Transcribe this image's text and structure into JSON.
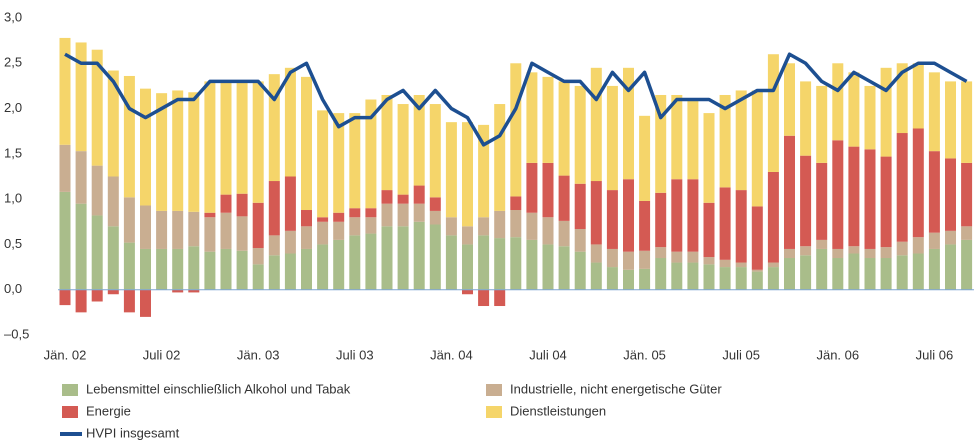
{
  "chart_data": {
    "type": "bar",
    "categories": [
      "Jän. 02",
      null,
      null,
      null,
      null,
      null,
      "Juli 02",
      null,
      null,
      null,
      null,
      null,
      "Jän. 03",
      null,
      null,
      null,
      null,
      null,
      "Juli 03",
      null,
      null,
      null,
      null,
      null,
      "Jän. 04",
      null,
      null,
      null,
      null,
      null,
      "Juli 04",
      null,
      null,
      null,
      null,
      null,
      "Jän. 05",
      null,
      null,
      null,
      null,
      null,
      "Juli 05",
      null,
      null,
      null,
      null,
      null,
      "Jän. 06",
      null,
      null,
      null,
      null,
      null,
      "Juli 06",
      null,
      null
    ],
    "series": [
      {
        "name": "Lebensmittel einschließlich Alkohol und Tabak",
        "color": "#a9bd8a",
        "values": [
          1.08,
          0.95,
          0.82,
          0.7,
          0.52,
          0.45,
          0.45,
          0.45,
          0.48,
          0.42,
          0.45,
          0.43,
          0.28,
          0.38,
          0.4,
          0.45,
          0.5,
          0.55,
          0.6,
          0.62,
          0.7,
          0.7,
          0.75,
          0.72,
          0.6,
          0.5,
          0.6,
          0.57,
          0.58,
          0.55,
          0.5,
          0.48,
          0.42,
          0.3,
          0.25,
          0.22,
          0.23,
          0.35,
          0.3,
          0.3,
          0.28,
          0.25,
          0.25,
          0.2,
          0.25,
          0.35,
          0.38,
          0.45,
          0.35,
          0.4,
          0.35,
          0.35,
          0.38,
          0.4,
          0.45,
          0.5,
          0.55
        ]
      },
      {
        "name": "Industrielle, nicht energetische Güter",
        "color": "#c9ae91",
        "values": [
          0.52,
          0.58,
          0.55,
          0.55,
          0.5,
          0.48,
          0.42,
          0.42,
          0.38,
          0.38,
          0.4,
          0.38,
          0.18,
          0.22,
          0.25,
          0.25,
          0.25,
          0.2,
          0.2,
          0.18,
          0.25,
          0.25,
          0.2,
          0.15,
          0.2,
          0.2,
          0.2,
          0.3,
          0.3,
          0.3,
          0.3,
          0.28,
          0.25,
          0.2,
          0.2,
          0.2,
          0.2,
          0.12,
          0.12,
          0.12,
          0.08,
          0.08,
          0.05,
          0.02,
          0.05,
          0.1,
          0.1,
          0.1,
          0.1,
          0.08,
          0.1,
          0.12,
          0.15,
          0.18,
          0.18,
          0.15,
          0.15
        ]
      },
      {
        "name": "Energie",
        "color": "#d45a53",
        "values": [
          -0.17,
          -0.25,
          -0.13,
          -0.05,
          -0.25,
          -0.3,
          0,
          -0.03,
          -0.03,
          0.05,
          0.2,
          0.25,
          0.5,
          0.6,
          0.6,
          0.18,
          0.05,
          0.1,
          0.1,
          0.1,
          0.15,
          0.1,
          0.2,
          0.15,
          0,
          -0.05,
          -0.18,
          -0.18,
          0.15,
          0.55,
          0.6,
          0.5,
          0.5,
          0.7,
          0.65,
          0.8,
          0.55,
          0.6,
          0.8,
          0.8,
          0.6,
          0.8,
          0.8,
          0.7,
          1.0,
          1.25,
          1.0,
          0.85,
          1.2,
          1.1,
          1.1,
          1.0,
          1.2,
          1.2,
          0.9,
          0.8,
          0.7
        ]
      },
      {
        "name": "Dienstleistungen",
        "color": "#f5d56a",
        "values": [
          1.18,
          1.2,
          1.28,
          1.17,
          1.34,
          1.29,
          1.3,
          1.33,
          1.32,
          1.45,
          1.25,
          1.24,
          1.34,
          1.18,
          1.2,
          1.47,
          1.18,
          1.1,
          1.05,
          1.2,
          1.05,
          1.0,
          1.0,
          1.03,
          1.05,
          1.15,
          1.02,
          1.18,
          1.47,
          1.0,
          0.95,
          1.04,
          1.08,
          1.25,
          1.15,
          1.23,
          0.94,
          1.08,
          0.93,
          0.88,
          0.99,
          1.02,
          1.1,
          1.28,
          1.3,
          0.8,
          0.82,
          0.85,
          0.85,
          0.82,
          0.7,
          0.98,
          0.77,
          0.72,
          0.87,
          0.85,
          0.9
        ]
      },
      {
        "name": "HVPI insgesamt",
        "type": "line",
        "color": "#1d4f91",
        "values": [
          2.6,
          2.5,
          2.5,
          2.3,
          2.0,
          1.9,
          2.0,
          2.1,
          2.1,
          2.3,
          2.3,
          2.3,
          2.3,
          2.1,
          2.4,
          2.5,
          2.1,
          1.8,
          1.9,
          1.9,
          2.1,
          2.2,
          2.0,
          2.2,
          2.0,
          1.9,
          1.6,
          1.7,
          2.0,
          2.5,
          2.4,
          2.3,
          2.3,
          2.1,
          2.4,
          2.2,
          2.4,
          1.9,
          2.1,
          2.1,
          2.1,
          2.0,
          2.1,
          2.2,
          2.2,
          2.6,
          2.5,
          2.3,
          2.2,
          2.4,
          2.3,
          2.2,
          2.4,
          2.5,
          2.5,
          2.4,
          2.3
        ]
      }
    ],
    "ylim": [
      -0.5,
      3.0
    ],
    "yticks": [
      {
        "value": 3.0,
        "label": "3,0"
      },
      {
        "value": 2.5,
        "label": "2,5"
      },
      {
        "value": 2.0,
        "label": "2,0"
      },
      {
        "value": 1.5,
        "label": "1,5"
      },
      {
        "value": 1.0,
        "label": "1,0"
      },
      {
        "value": 0.5,
        "label": "0,5"
      },
      {
        "value": 0.0,
        "label": "0,0"
      },
      {
        "value": -0.5,
        "label": "–0,5"
      }
    ],
    "stacked": true,
    "grid": false
  }
}
